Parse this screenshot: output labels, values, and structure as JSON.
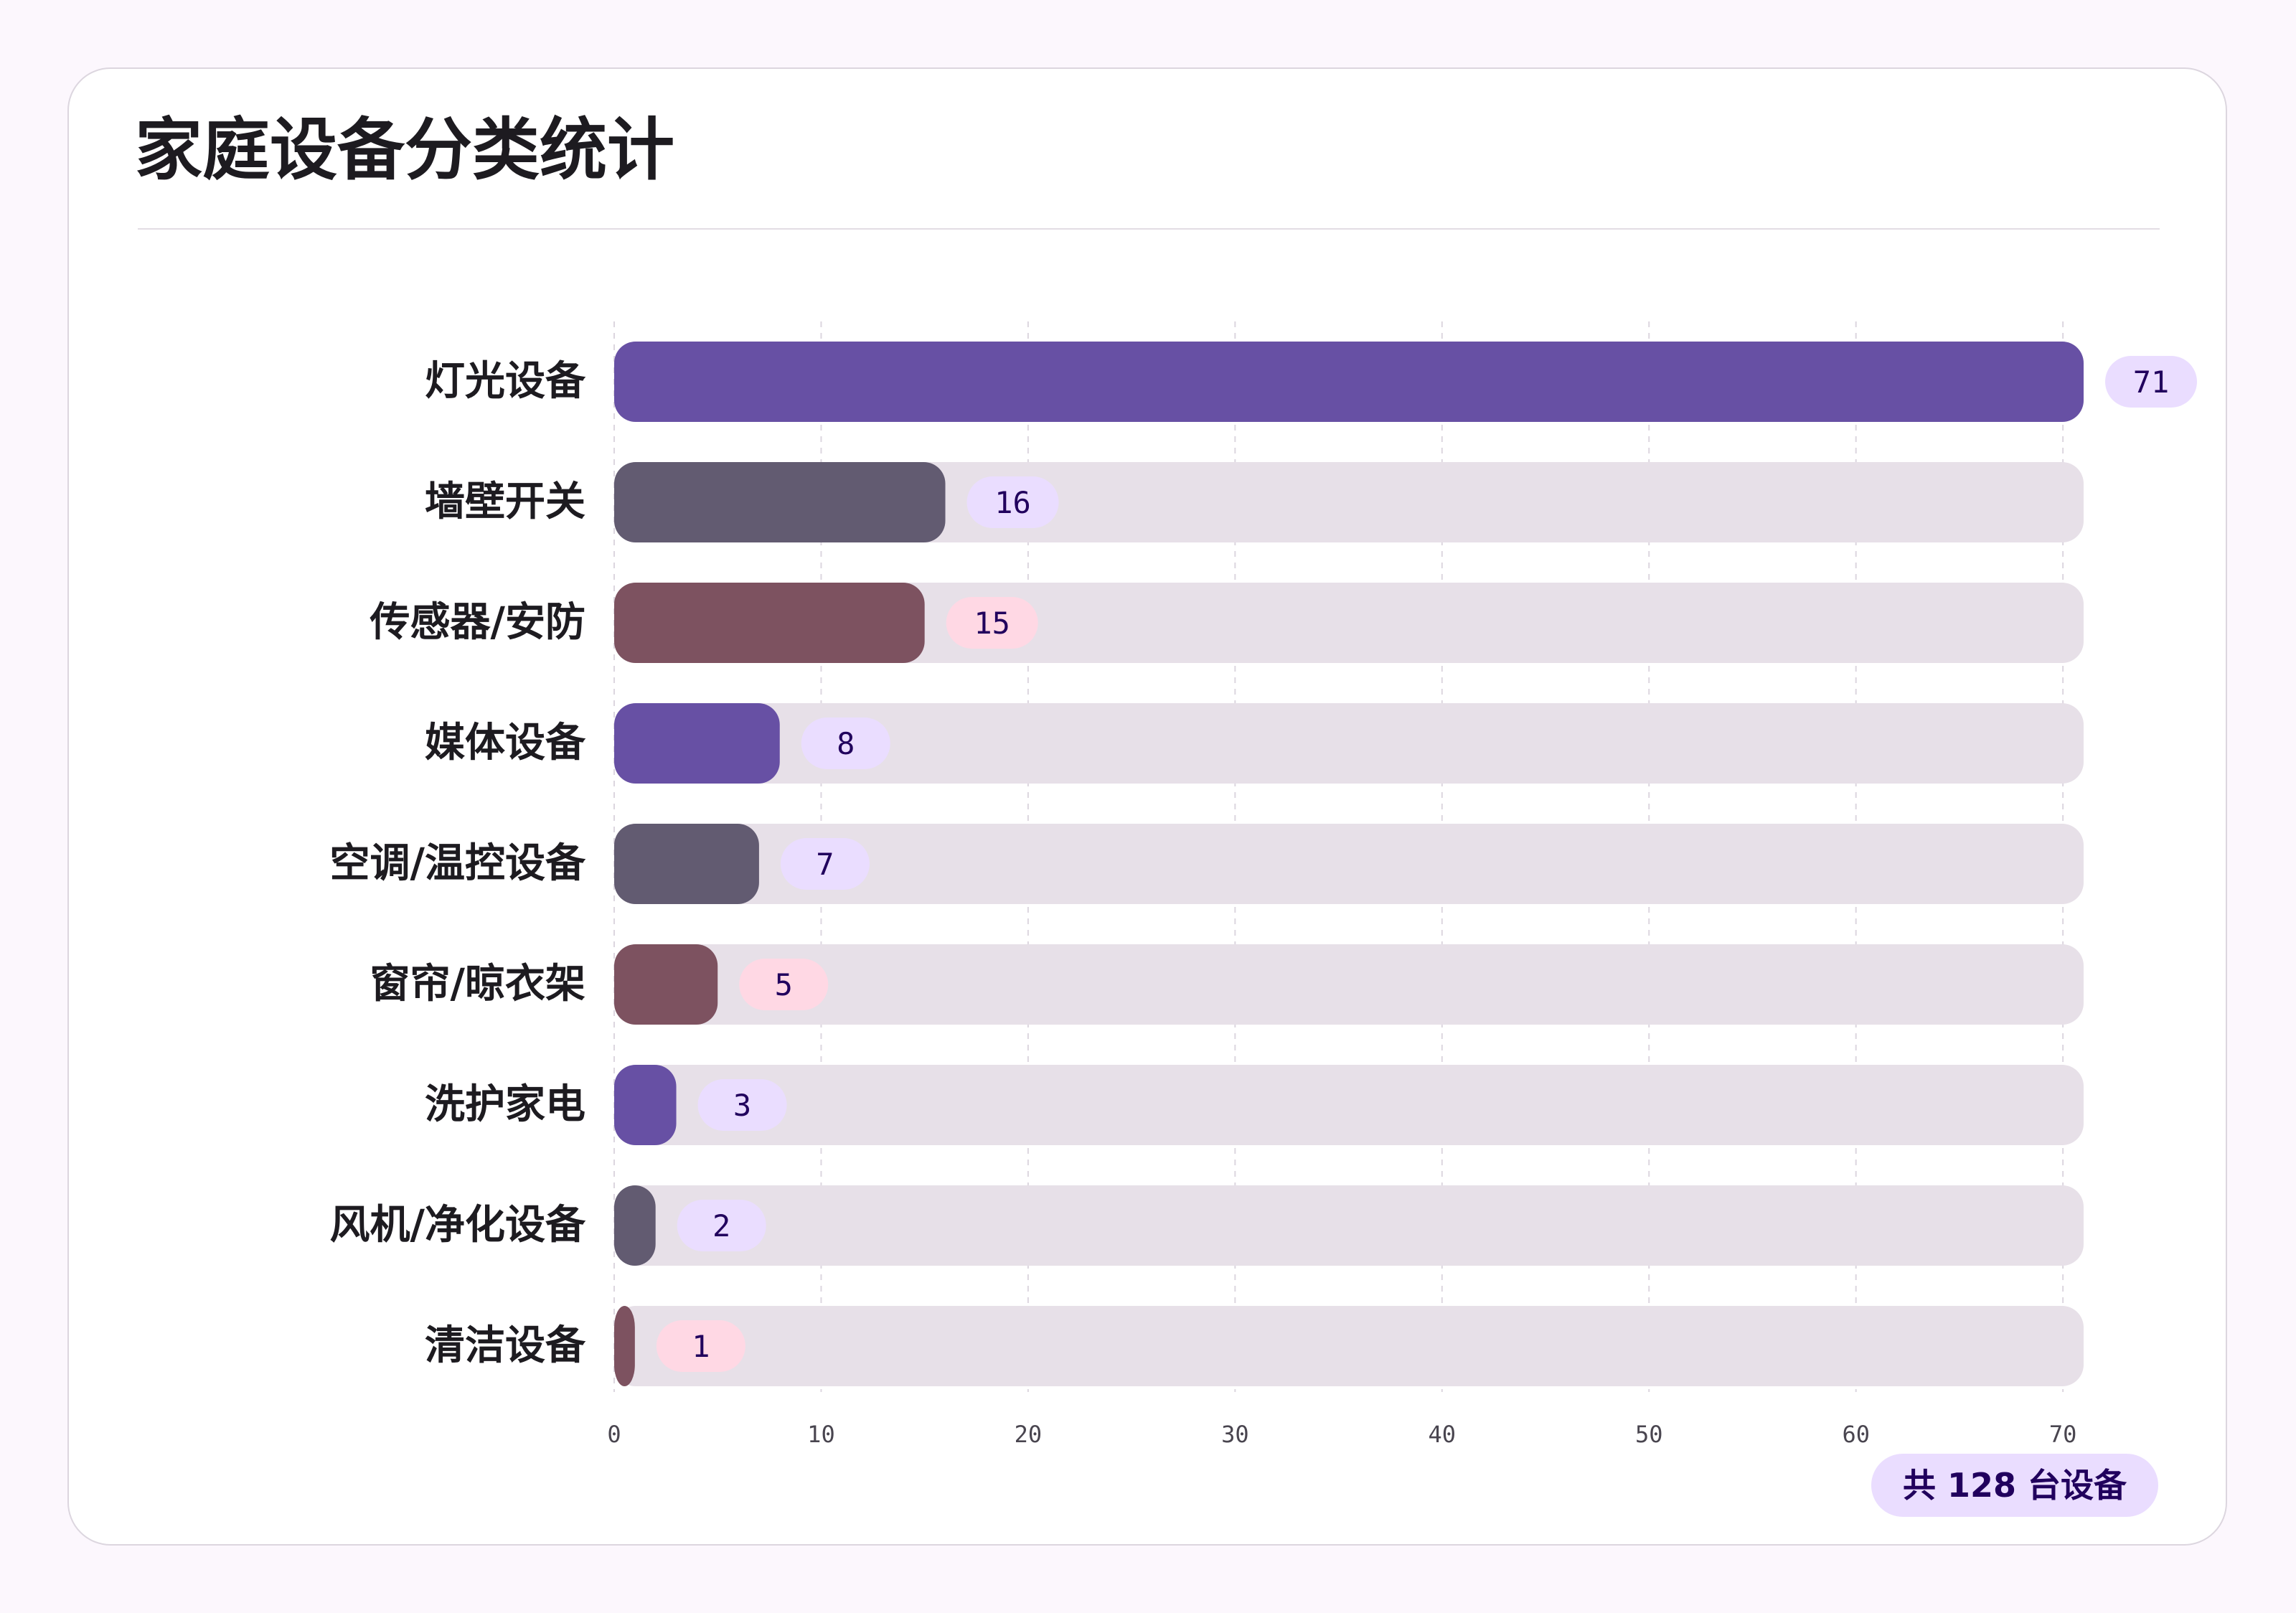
{
  "title": "家庭设备分类统计",
  "total_badge": "共 128 台设备",
  "colors": {
    "purple": "#6750a4",
    "slate": "#625b71",
    "mauve": "#7d5260",
    "track": "#e7e0e8",
    "badge_purple_bg": "#eaddff",
    "badge_pink_bg": "#ffd8e4",
    "badge_text": "#21005d",
    "grid": "#dcd6df",
    "tick_text": "#49454f",
    "label_text": "#1d1b20"
  },
  "chart_data": {
    "type": "bar",
    "orientation": "horizontal",
    "title": "家庭设备分类统计",
    "categories": [
      "灯光设备",
      "墙壁开关",
      "传感器/安防",
      "媒体设备",
      "空调/温控设备",
      "窗帘/晾衣架",
      "洗护家电",
      "风机/净化设备",
      "清洁设备"
    ],
    "values": [
      71,
      16,
      15,
      8,
      7,
      5,
      3,
      2,
      1
    ],
    "bar_colors": [
      "#6750a4",
      "#625b71",
      "#7d5260",
      "#6750a4",
      "#625b71",
      "#7d5260",
      "#6750a4",
      "#625b71",
      "#7d5260"
    ],
    "badge_colors": [
      "#eaddff",
      "#eaddff",
      "#ffd8e4",
      "#eaddff",
      "#eaddff",
      "#ffd8e4",
      "#eaddff",
      "#eaddff",
      "#ffd8e4"
    ],
    "xlim": [
      0,
      71
    ],
    "xticks": [
      0,
      10,
      20,
      30,
      40,
      50,
      60,
      70
    ],
    "xlabel": "",
    "ylabel": "",
    "grid": true,
    "total": 128
  }
}
